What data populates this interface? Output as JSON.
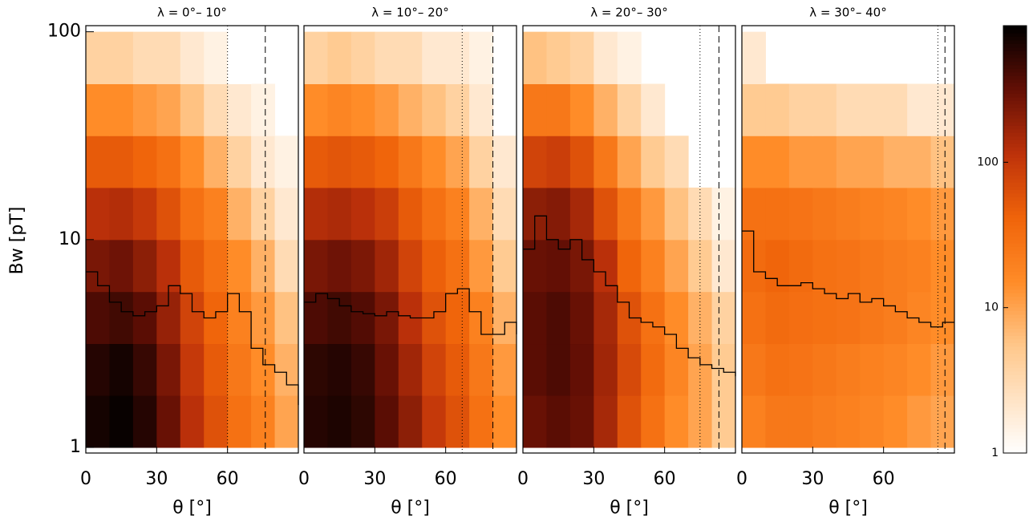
{
  "chart_data": [
    {
      "type": "heatmap",
      "title": "λ =  0°– 10°",
      "ylabel": "Bw [pT]",
      "xlabel": "θ [°]",
      "xlim": [
        0,
        90
      ],
      "ylim": [
        0.94,
        107
      ],
      "log_y": true,
      "xticks": [
        0,
        30,
        60
      ],
      "yticks": [
        1,
        10,
        100
      ],
      "x_bins": [
        0,
        10,
        20,
        30,
        40,
        50,
        60,
        70,
        80,
        90
      ],
      "y_bins": [
        1,
        1.78,
        3.16,
        5.62,
        10,
        17.8,
        31.6,
        56.2,
        100
      ],
      "counts": [
        [
          700,
          800,
          600,
          300,
          120,
          60,
          30,
          20,
          10
        ],
        [
          600,
          700,
          500,
          250,
          100,
          50,
          25,
          15,
          8
        ],
        [
          400,
          450,
          350,
          180,
          80,
          40,
          20,
          12,
          6
        ],
        [
          250,
          280,
          200,
          120,
          50,
          30,
          15,
          8,
          3
        ],
        [
          120,
          130,
          100,
          60,
          30,
          20,
          8,
          4,
          2
        ],
        [
          50,
          50,
          40,
          30,
          15,
          8,
          4,
          2,
          1.5
        ],
        [
          15,
          15,
          12,
          10,
          6,
          3,
          2,
          1.5,
          0
        ],
        [
          4,
          4,
          3,
          3,
          2,
          1.5,
          1,
          0,
          0
        ]
      ],
      "x": [
        0,
        5,
        10,
        15,
        20,
        25,
        30,
        35,
        40,
        45,
        50,
        55,
        60,
        65,
        70,
        75,
        80,
        85,
        90
      ],
      "series": [
        {
          "color": "#000000",
          "values": [
            7,
            6,
            5,
            4.5,
            4.3,
            4.5,
            4.8,
            6,
            5.5,
            4.5,
            4.2,
            4.5,
            5.5,
            4.5,
            3,
            2.5,
            2.3,
            2,
            1.6
          ]
        }
      ],
      "vlines": [
        {
          "x": 60,
          "dash": "dotted"
        },
        {
          "x": 76,
          "dash": "dashed"
        }
      ]
    },
    {
      "type": "heatmap",
      "title": "λ = 10°– 20°",
      "xlabel": "θ [°]",
      "xlim": [
        0,
        90
      ],
      "ylim": [
        0.94,
        107
      ],
      "log_y": true,
      "xticks": [
        0,
        30,
        60
      ],
      "x_bins": [
        0,
        10,
        20,
        30,
        40,
        50,
        60,
        70,
        80,
        90
      ],
      "y_bins": [
        1,
        1.78,
        3.16,
        5.62,
        10,
        17.8,
        31.6,
        56.2,
        100
      ],
      "counts": [
        [
          600,
          650,
          550,
          350,
          200,
          100,
          60,
          30,
          15
        ],
        [
          550,
          600,
          500,
          300,
          160,
          80,
          50,
          25,
          12
        ],
        [
          400,
          450,
          380,
          250,
          120,
          60,
          40,
          20,
          8
        ],
        [
          250,
          280,
          240,
          160,
          80,
          45,
          30,
          12,
          5
        ],
        [
          130,
          140,
          120,
          90,
          50,
          30,
          20,
          8,
          3
        ],
        [
          50,
          55,
          50,
          40,
          25,
          15,
          10,
          4,
          2
        ],
        [
          15,
          18,
          15,
          12,
          8,
          6,
          4,
          2,
          0
        ],
        [
          4,
          5,
          4,
          3,
          3,
          2,
          2,
          1.5,
          0
        ]
      ],
      "x": [
        0,
        5,
        10,
        15,
        20,
        25,
        30,
        35,
        40,
        45,
        50,
        55,
        60,
        65,
        70,
        75,
        80,
        85,
        90
      ],
      "series": [
        {
          "color": "#000000",
          "values": [
            5,
            5.5,
            5.2,
            4.8,
            4.5,
            4.4,
            4.3,
            4.5,
            4.3,
            4.2,
            4.2,
            4.5,
            5.5,
            5.8,
            4.5,
            3.5,
            3.5,
            4,
            3.5
          ]
        }
      ],
      "vlines": [
        {
          "x": 67,
          "dash": "dotted"
        },
        {
          "x": 80,
          "dash": "dashed"
        }
      ]
    },
    {
      "type": "heatmap",
      "title": "λ = 20°– 30°",
      "xlabel": "θ [°]",
      "xlim": [
        0,
        90
      ],
      "ylim": [
        0.94,
        107
      ],
      "log_y": true,
      "xticks": [
        0,
        30,
        60
      ],
      "x_bins": [
        0,
        10,
        20,
        30,
        40,
        50,
        60,
        70,
        80,
        90
      ],
      "y_bins": [
        1,
        1.78,
        3.16,
        5.62,
        10,
        17.8,
        31.6,
        56.2,
        100
      ],
      "counts": [
        [
          300,
          350,
          300,
          150,
          60,
          30,
          15,
          10,
          5
        ],
        [
          350,
          400,
          320,
          160,
          70,
          35,
          18,
          10,
          5
        ],
        [
          350,
          400,
          300,
          150,
          60,
          30,
          15,
          8,
          4
        ],
        [
          300,
          320,
          250,
          120,
          40,
          20,
          10,
          5,
          2
        ],
        [
          200,
          220,
          150,
          60,
          25,
          12,
          6,
          3,
          1.5
        ],
        [
          80,
          90,
          60,
          25,
          10,
          5,
          3,
          0,
          0
        ],
        [
          25,
          25,
          15,
          8,
          4,
          2,
          0,
          0,
          0
        ],
        [
          6,
          5,
          4,
          2,
          1.5,
          0,
          0,
          0,
          0
        ]
      ],
      "x": [
        0,
        5,
        10,
        15,
        20,
        25,
        30,
        35,
        40,
        45,
        50,
        55,
        60,
        65,
        70,
        75,
        80,
        85,
        90
      ],
      "series": [
        {
          "color": "#000000",
          "values": [
            9,
            13,
            10,
            9,
            10,
            8,
            7,
            6,
            5,
            4.2,
            4,
            3.8,
            3.5,
            3,
            2.7,
            2.5,
            2.4,
            2.3,
            2.2
          ]
        }
      ],
      "vlines": [
        {
          "x": 75,
          "dash": "dotted"
        },
        {
          "x": 83,
          "dash": "dashed"
        }
      ]
    },
    {
      "type": "heatmap",
      "title": "λ = 30°– 40°",
      "xlabel": "θ [°]",
      "xlim": [
        0,
        90
      ],
      "ylim": [
        0.94,
        107
      ],
      "log_y": true,
      "xticks": [
        0,
        30,
        60
      ],
      "x_bins": [
        0,
        10,
        20,
        30,
        40,
        50,
        60,
        70,
        80,
        90
      ],
      "y_bins": [
        1,
        1.78,
        3.16,
        5.62,
        10,
        17.8,
        31.6,
        56.2,
        100
      ],
      "counts": [
        [
          20,
          25,
          25,
          22,
          20,
          18,
          15,
          12,
          10
        ],
        [
          25,
          30,
          28,
          25,
          22,
          20,
          18,
          15,
          12
        ],
        [
          30,
          35,
          32,
          30,
          28,
          25,
          22,
          18,
          15
        ],
        [
          35,
          40,
          35,
          30,
          28,
          25,
          22,
          20,
          15
        ],
        [
          30,
          30,
          28,
          25,
          22,
          20,
          18,
          15,
          12
        ],
        [
          15,
          15,
          12,
          12,
          10,
          10,
          8,
          8,
          6
        ],
        [
          5,
          5,
          4,
          4,
          3,
          3,
          3,
          2,
          2
        ],
        [
          2,
          0,
          0,
          0,
          0,
          0,
          0,
          0,
          0
        ]
      ],
      "x": [
        0,
        5,
        10,
        15,
        20,
        25,
        30,
        35,
        40,
        45,
        50,
        55,
        60,
        65,
        70,
        75,
        80,
        85,
        90
      ],
      "series": [
        {
          "color": "#000000",
          "values": [
            11,
            7,
            6.5,
            6,
            6,
            6.2,
            5.8,
            5.5,
            5.2,
            5.5,
            5,
            5.2,
            4.8,
            4.5,
            4.2,
            4,
            3.8,
            4,
            4
          ]
        }
      ],
      "vlines": [
        {
          "x": 83,
          "dash": "dotted"
        },
        {
          "x": 86,
          "dash": "dashed"
        }
      ]
    },
    {
      "type": "colorbar",
      "zlim": [
        1,
        870
      ],
      "zticks": [
        1,
        10,
        100
      ],
      "log": true
    }
  ]
}
